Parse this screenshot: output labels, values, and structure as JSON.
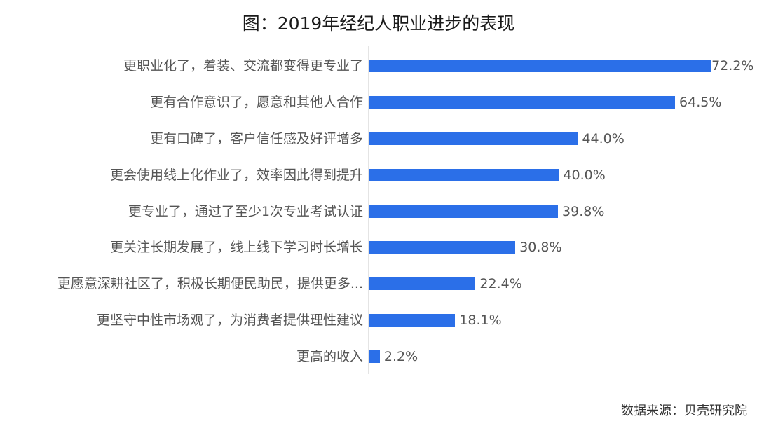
{
  "header": {
    "title": "图：2019年经纪人职业进步的表现"
  },
  "footer": {
    "source": "数据来源：贝壳研究院"
  },
  "colors": {
    "bar": "#2b6fe8",
    "label": "#555555",
    "axis": "#e4e4e4"
  },
  "chart_data": {
    "type": "bar",
    "orientation": "horizontal",
    "title": "图：2019年经纪人职业进步的表现",
    "xlabel": "",
    "ylabel": "",
    "xlim": [
      0,
      75
    ],
    "grid": false,
    "legend": null,
    "categories": [
      "更职业化了，着装、交流都变得更专业了",
      "更有合作意识了，愿意和其他人合作",
      "更有口碑了，客户信任感及好评增多",
      "更会使用线上化作业了，效率因此得到提升",
      "更专业了，通过了至少1次专业考试认证",
      "更关注长期发展了，线上线下学习时长增长",
      "更愿意深耕社区了，积极长期便民助民，提供更多...",
      "更坚守中性市场观了，为消费者提供理性建议",
      "更高的收入"
    ],
    "values": [
      72.2,
      64.5,
      44.0,
      40.0,
      39.8,
      30.8,
      22.4,
      18.1,
      2.2
    ],
    "value_labels": [
      "72.2%",
      "64.5%",
      "44.0%",
      "40.0%",
      "39.8%",
      "30.8%",
      "22.4%",
      "18.1%",
      "2.2%"
    ],
    "source": "数据来源：贝壳研究院"
  }
}
